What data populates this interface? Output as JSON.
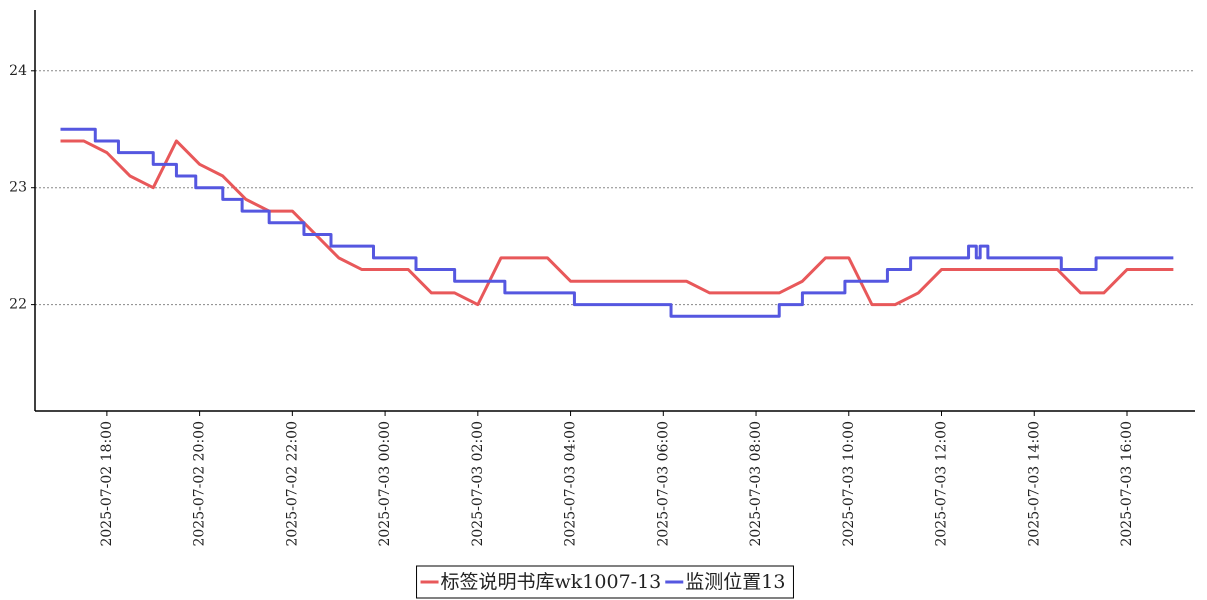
{
  "chart_data": {
    "type": "line",
    "xlim": [
      "2025-07-02 16:27",
      "2025-07-03 17:28"
    ],
    "xticks": [
      "2025-07-02 18:00",
      "2025-07-02 20:00",
      "2025-07-02 22:00",
      "2025-07-03 00:00",
      "2025-07-03 02:00",
      "2025-07-03 04:00",
      "2025-07-03 06:00",
      "2025-07-03 08:00",
      "2025-07-03 10:00",
      "2025-07-03 12:00",
      "2025-07-03 14:00",
      "2025-07-03 16:00"
    ],
    "ylim": [
      21.09,
      24.52
    ],
    "yticks": [
      22,
      23,
      24
    ],
    "grid": true,
    "legend": "bottom",
    "series": [
      {
        "name": "标签说明书库wk1007-13",
        "color": "#e8585a",
        "x": [
          "2025-07-02 17:00",
          "2025-07-02 17:30",
          "2025-07-02 18:00",
          "2025-07-02 18:30",
          "2025-07-02 19:00",
          "2025-07-02 19:30",
          "2025-07-02 20:00",
          "2025-07-02 20:30",
          "2025-07-02 21:00",
          "2025-07-02 21:30",
          "2025-07-02 22:00",
          "2025-07-02 22:30",
          "2025-07-02 23:00",
          "2025-07-02 23:30",
          "2025-07-03 00:00",
          "2025-07-03 00:30",
          "2025-07-03 01:00",
          "2025-07-03 01:30",
          "2025-07-03 02:00",
          "2025-07-03 02:30",
          "2025-07-03 03:00",
          "2025-07-03 03:30",
          "2025-07-03 04:00",
          "2025-07-03 04:30",
          "2025-07-03 05:00",
          "2025-07-03 05:30",
          "2025-07-03 06:00",
          "2025-07-03 06:30",
          "2025-07-03 07:00",
          "2025-07-03 07:30",
          "2025-07-03 08:00",
          "2025-07-03 08:30",
          "2025-07-03 09:00",
          "2025-07-03 09:30",
          "2025-07-03 10:00",
          "2025-07-03 10:30",
          "2025-07-03 11:00",
          "2025-07-03 11:30",
          "2025-07-03 12:00",
          "2025-07-03 12:30",
          "2025-07-03 13:00",
          "2025-07-03 13:30",
          "2025-07-03 14:00",
          "2025-07-03 14:30",
          "2025-07-03 15:00",
          "2025-07-03 15:30",
          "2025-07-03 16:00",
          "2025-07-03 16:30",
          "2025-07-03 17:00"
        ],
        "values": [
          23.4,
          23.4,
          23.3,
          23.1,
          23.0,
          23.4,
          23.2,
          23.1,
          22.9,
          22.8,
          22.8,
          22.6,
          22.4,
          22.3,
          22.3,
          22.3,
          22.1,
          22.1,
          22.0,
          22.4,
          22.4,
          22.4,
          22.2,
          22.2,
          22.2,
          22.2,
          22.2,
          22.2,
          22.1,
          22.1,
          22.1,
          22.1,
          22.2,
          22.4,
          22.4,
          22.0,
          22.0,
          22.1,
          22.3,
          22.3,
          22.3,
          22.3,
          22.3,
          22.3,
          22.1,
          22.1,
          22.3,
          22.3,
          22.3
        ]
      },
      {
        "name": "监测位置13",
        "color": "#5557e0",
        "x": [
          "2025-07-02 17:00",
          "2025-07-02 17:45",
          "2025-07-02 17:45",
          "2025-07-02 18:15",
          "2025-07-02 18:15",
          "2025-07-02 19:00",
          "2025-07-02 19:00",
          "2025-07-02 19:30",
          "2025-07-02 19:30",
          "2025-07-02 19:55",
          "2025-07-02 19:55",
          "2025-07-02 20:30",
          "2025-07-02 20:30",
          "2025-07-02 20:55",
          "2025-07-02 20:55",
          "2025-07-02 21:30",
          "2025-07-02 21:30",
          "2025-07-02 22:15",
          "2025-07-02 22:15",
          "2025-07-02 22:50",
          "2025-07-02 22:50",
          "2025-07-02 23:45",
          "2025-07-02 23:45",
          "2025-07-03 00:40",
          "2025-07-03 00:40",
          "2025-07-03 01:30",
          "2025-07-03 01:30",
          "2025-07-03 02:35",
          "2025-07-03 02:35",
          "2025-07-03 04:05",
          "2025-07-03 04:05",
          "2025-07-03 06:10",
          "2025-07-03 06:10",
          "2025-07-03 08:30",
          "2025-07-03 08:30",
          "2025-07-03 09:00",
          "2025-07-03 09:00",
          "2025-07-03 09:55",
          "2025-07-03 09:55",
          "2025-07-03 10:50",
          "2025-07-03 10:50",
          "2025-07-03 11:20",
          "2025-07-03 11:20",
          "2025-07-03 12:35",
          "2025-07-03 12:35",
          "2025-07-03 12:45",
          "2025-07-03 12:45",
          "2025-07-03 12:50",
          "2025-07-03 12:50",
          "2025-07-03 13:00",
          "2025-07-03 13:00",
          "2025-07-03 14:35",
          "2025-07-03 14:35",
          "2025-07-03 15:20",
          "2025-07-03 15:20",
          "2025-07-03 17:00"
        ],
        "values": [
          23.5,
          23.5,
          23.4,
          23.4,
          23.3,
          23.3,
          23.2,
          23.2,
          23.1,
          23.1,
          23.0,
          23.0,
          22.9,
          22.9,
          22.8,
          22.8,
          22.7,
          22.7,
          22.6,
          22.6,
          22.5,
          22.5,
          22.4,
          22.4,
          22.3,
          22.3,
          22.2,
          22.2,
          22.1,
          22.1,
          22.0,
          22.0,
          21.9,
          21.9,
          22.0,
          22.0,
          22.1,
          22.1,
          22.2,
          22.2,
          22.3,
          22.3,
          22.4,
          22.4,
          22.5,
          22.5,
          22.4,
          22.4,
          22.5,
          22.5,
          22.4,
          22.4,
          22.3,
          22.3,
          22.4,
          22.4
        ]
      }
    ]
  }
}
